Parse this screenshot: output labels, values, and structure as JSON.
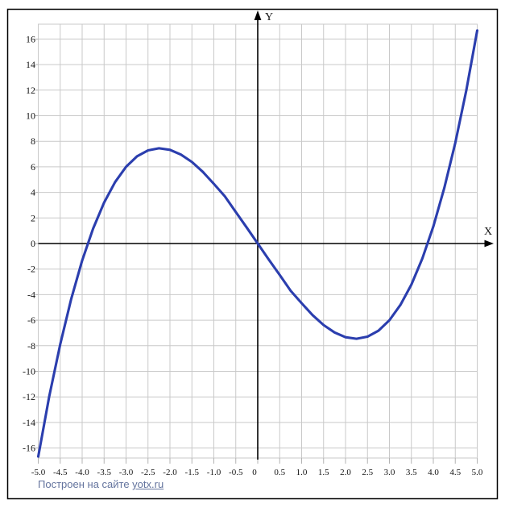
{
  "window": {
    "background": "#ffffff",
    "border_color": "#000000"
  },
  "chart_data": {
    "type": "line",
    "title": "",
    "xlabel": "X",
    "ylabel": "Y",
    "xlim": [
      -5,
      5
    ],
    "ylim": [
      -16,
      16
    ],
    "grid": {
      "visible": true,
      "x_step": 0.5,
      "y_step": 2
    },
    "x_tick_labels": [
      "-5.0",
      "-4.5",
      "-4.0",
      "-3.5",
      "-3.0",
      "-2.5",
      "-2.0",
      "-1.5",
      "-1.0",
      "-0.5",
      "0",
      "0.5",
      "1.0",
      "1.5",
      "2.0",
      "2.5",
      "3.0",
      "3.5",
      "4.0",
      "4.5",
      "5.0"
    ],
    "y_tick_labels": [
      "16",
      "14",
      "12",
      "10",
      "8",
      "6",
      "4",
      "2",
      "0",
      "-2",
      "-4",
      "-6",
      "-8",
      "-10",
      "-12",
      "-14",
      "-16"
    ],
    "colors": {
      "curve": "#2b3eae",
      "grid": "#c9c9c9",
      "tick": "#b3b3b3",
      "axis": "#000000",
      "label": "#141414"
    },
    "series": [
      {
        "name": "curve",
        "color": "#2b3eae",
        "stroke_width": 3.1,
        "points": [
          [
            -5,
            -16.67
          ],
          [
            -4.75,
            -11.97
          ],
          [
            -4.5,
            -7.88
          ],
          [
            -4.25,
            -4.34
          ],
          [
            -4,
            -1.33
          ],
          [
            -3.75,
            1.17
          ],
          [
            -3.5,
            3.21
          ],
          [
            -3.25,
            4.81
          ],
          [
            -3,
            6.0
          ],
          [
            -2.75,
            6.82
          ],
          [
            -2.5,
            7.29
          ],
          [
            -2.25,
            7.45
          ],
          [
            -2,
            7.33
          ],
          [
            -1.75,
            6.96
          ],
          [
            -1.5,
            6.38
          ],
          [
            -1.25,
            5.6
          ],
          [
            -1,
            4.67
          ],
          [
            -0.75,
            3.7
          ],
          [
            -0.5,
            2.46
          ],
          [
            -0.25,
            1.24
          ],
          [
            0,
            0
          ],
          [
            0.25,
            -1.24
          ],
          [
            0.5,
            -2.46
          ],
          [
            0.75,
            -3.7
          ],
          [
            1,
            -4.67
          ],
          [
            1.25,
            -5.6
          ],
          [
            1.5,
            -6.38
          ],
          [
            1.75,
            -6.96
          ],
          [
            2,
            -7.33
          ],
          [
            2.25,
            -7.45
          ],
          [
            2.5,
            -7.29
          ],
          [
            2.75,
            -6.82
          ],
          [
            3,
            -6.0
          ],
          [
            3.25,
            -4.81
          ],
          [
            3.5,
            -3.21
          ],
          [
            3.75,
            -1.17
          ],
          [
            4,
            1.33
          ],
          [
            4.25,
            4.34
          ],
          [
            4.5,
            7.88
          ],
          [
            4.75,
            11.97
          ],
          [
            5,
            16.67
          ]
        ]
      }
    ]
  },
  "footer": {
    "prefix": "Построен на сайте ",
    "link": "yotx.ru",
    "color": "#64749e"
  }
}
